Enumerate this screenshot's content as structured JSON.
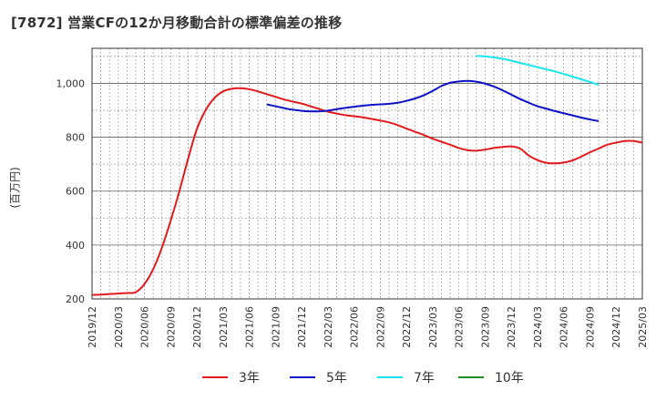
{
  "title": "[7872]  営業CFの12か月移動合計の標準偏差の推移",
  "ylabel": "(百万円)",
  "chart_data": {
    "type": "line",
    "title": "[7872]  営業CFの12か月移動合計の標準偏差の推移",
    "xlabel": "",
    "ylabel": "(百万円)",
    "ylim": [
      200,
      1130
    ],
    "yticks": [
      200,
      400,
      600,
      800,
      1000
    ],
    "ytick_labels": [
      "200",
      "400",
      "600",
      "800",
      "1,000"
    ],
    "x_tick_labels": [
      "2019/12",
      "2020/03",
      "2020/06",
      "2020/09",
      "2020/12",
      "2021/03",
      "2021/06",
      "2021/09",
      "2021/12",
      "2022/03",
      "2022/06",
      "2022/09",
      "2022/12",
      "2023/03",
      "2023/06",
      "2023/09",
      "2023/12",
      "2024/03",
      "2024/06",
      "2024/09",
      "2024/12",
      "2025/03"
    ],
    "x_start": "2019/12",
    "x_end": "2025/03",
    "grid": true,
    "legend_position": "bottom",
    "series": [
      {
        "name": "3年",
        "color": "#e31a1c",
        "start": "2019/12",
        "values": [
          215,
          216,
          218,
          220,
          222,
          225,
          255,
          310,
          390,
          490,
          600,
          720,
          830,
          900,
          945,
          970,
          980,
          982,
          978,
          970,
          960,
          950,
          940,
          932,
          925,
          915,
          905,
          895,
          888,
          882,
          878,
          874,
          868,
          862,
          855,
          845,
          832,
          820,
          808,
          795,
          783,
          772,
          760,
          752,
          750,
          754,
          760,
          764,
          766,
          758,
          732,
          715,
          705,
          703,
          706,
          714,
          728,
          744,
          758,
          772,
          780,
          786,
          786,
          780
        ]
      },
      {
        "name": "5年",
        "color": "#0d12c8",
        "start": "2021/08",
        "values": [
          922,
          915,
          908,
          902,
          898,
          896,
          896,
          899,
          904,
          909,
          913,
          917,
          920,
          922,
          924,
          928,
          935,
          944,
          956,
          972,
          990,
          1002,
          1007,
          1009,
          1006,
          999,
          988,
          974,
          958,
          942,
          928,
          915,
          906,
          897,
          889,
          881,
          873,
          866,
          860
        ]
      },
      {
        "name": "7年",
        "color": "#19e5ef",
        "start": "2023/08",
        "values": [
          1102,
          1100,
          1096,
          1091,
          1084,
          1076,
          1068,
          1060,
          1052,
          1044,
          1035,
          1025,
          1015,
          1005,
          995
        ]
      },
      {
        "name": "10年",
        "color": "#228b22",
        "start": "",
        "values": []
      }
    ]
  }
}
